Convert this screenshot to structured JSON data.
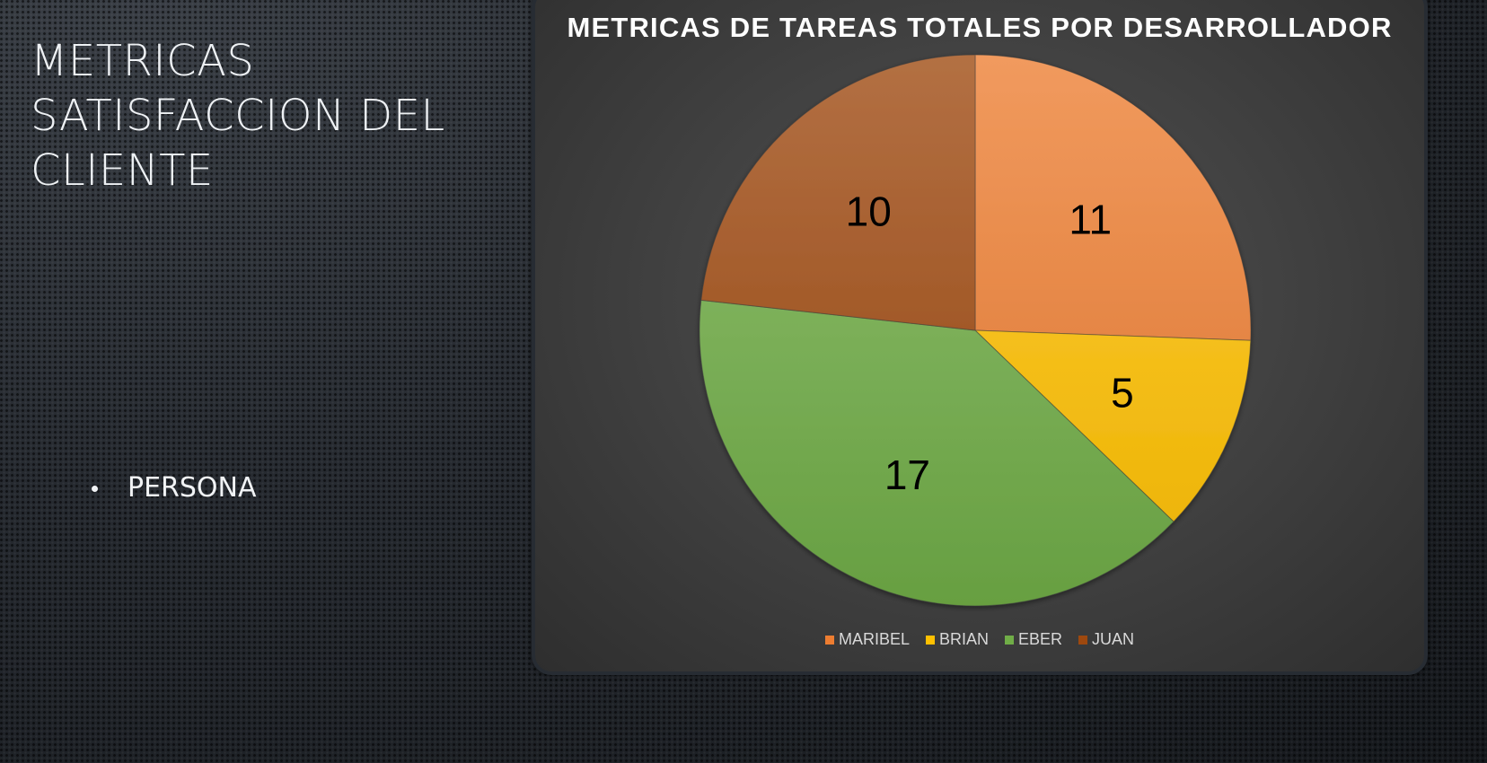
{
  "slide": {
    "title": "METRICAS SATISFACCION DEL CLIENTE",
    "bullets": [
      "PERSONA"
    ]
  },
  "chart_data": {
    "type": "pie",
    "title": "METRICAS DE TAREAS TOTALES POR DESARROLLADOR",
    "categories": [
      "MARIBEL",
      "BRIAN",
      "EBER",
      "JUAN"
    ],
    "values": [
      11,
      5,
      17,
      10
    ],
    "colors": [
      "#ed7d31",
      "#ffc000",
      "#70ad47",
      "#9e480e"
    ],
    "legend_position": "bottom",
    "data_labels": true
  }
}
